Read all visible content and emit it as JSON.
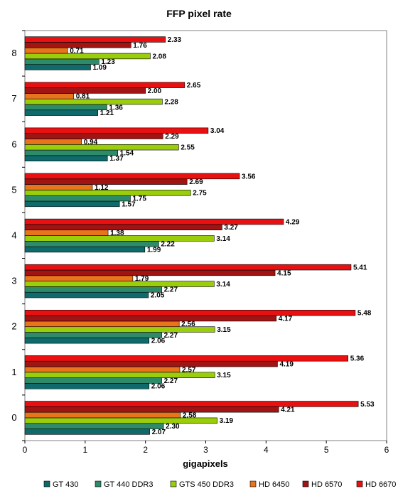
{
  "chart_data": {
    "type": "bar",
    "orientation": "horizontal",
    "title": "FFP pixel rate",
    "xlabel": "gigapixels",
    "ylabel": "",
    "xlim": [
      0,
      6
    ],
    "x_ticks": [
      "0",
      "1",
      "2",
      "3",
      "4",
      "5",
      "6"
    ],
    "categories": [
      "0",
      "1",
      "2",
      "3",
      "4",
      "5",
      "6",
      "7",
      "8"
    ],
    "legend_position": "bottom",
    "grid": false,
    "series": [
      {
        "name": "GT 430",
        "color": "#0f6b6b",
        "values": [
          2.07,
          2.06,
          2.06,
          2.05,
          1.99,
          1.57,
          1.37,
          1.21,
          1.09
        ]
      },
      {
        "name": "GT 440 DDR3",
        "color": "#2e8b6a",
        "values": [
          2.3,
          2.27,
          2.27,
          2.27,
          2.22,
          1.75,
          1.54,
          1.36,
          1.23
        ]
      },
      {
        "name": "GTS 450 DDR3",
        "color": "#9acd0a",
        "values": [
          3.19,
          3.15,
          3.15,
          3.14,
          3.14,
          2.75,
          2.55,
          2.28,
          2.08
        ]
      },
      {
        "name": "HD 6450",
        "color": "#e8741c",
        "values": [
          2.58,
          2.57,
          2.56,
          1.79,
          1.38,
          1.12,
          0.94,
          0.81,
          0.71
        ]
      },
      {
        "name": "HD 6570",
        "color": "#a01414",
        "values": [
          4.21,
          4.19,
          4.17,
          4.15,
          3.27,
          2.69,
          2.29,
          2.0,
          1.76
        ]
      },
      {
        "name": "HD 6670",
        "color": "#e81010",
        "values": [
          5.53,
          5.36,
          5.48,
          5.41,
          4.29,
          3.56,
          3.04,
          2.65,
          2.33
        ]
      }
    ],
    "value_labels": [
      [
        "2.07",
        "2.06",
        "2.06",
        "2.05",
        "1.99",
        "1.57",
        "1.37",
        "1.21",
        "1.09"
      ],
      [
        "2.30",
        "2.27",
        "2.27",
        "2.27",
        "2.22",
        "1.75",
        "1.54",
        "1.36",
        "1.23"
      ],
      [
        "3.19",
        "3.15",
        "3.15",
        "3.14",
        "3.14",
        "2.75",
        "2.55",
        "2.28",
        "2.08"
      ],
      [
        "2.58",
        "2.57",
        "2.56",
        "1.79",
        "1.38",
        "1.12",
        "0.94",
        "0.81",
        "0.71"
      ],
      [
        "4.21",
        "4.19",
        "4.17",
        "4.15",
        "3.27",
        "2.69",
        "2.29",
        "2.00",
        "1.76"
      ],
      [
        "5.53",
        "5.36",
        "5.48",
        "5.41",
        "4.29",
        "3.56",
        "3.04",
        "2.65",
        "2.33"
      ]
    ]
  }
}
